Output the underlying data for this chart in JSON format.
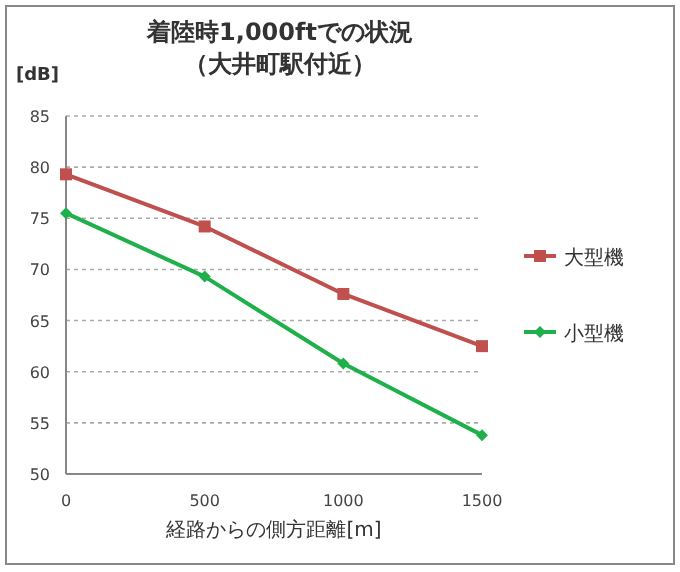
{
  "chart_data": {
    "type": "line",
    "title": "着陸時1,000ftでの状況",
    "subtitle": "（大井町駅付近）",
    "ylabel": "[dB]",
    "xlabel": "経路からの側方距離[m]",
    "x": [
      0,
      500,
      1000,
      1500
    ],
    "xlim": [
      0,
      1500
    ],
    "xticks": [
      0,
      500,
      1000,
      1500
    ],
    "ylim": [
      50,
      85
    ],
    "yticks": [
      50,
      55,
      60,
      65,
      70,
      75,
      80,
      85
    ],
    "grid": "y",
    "legend": "right",
    "series": [
      {
        "name": "大型機",
        "color": "#c0504d",
        "marker": "square",
        "values": [
          79.3,
          74.2,
          67.6,
          62.5
        ]
      },
      {
        "name": "小型機",
        "color": "#1fb04c",
        "marker": "diamond",
        "values": [
          75.5,
          69.3,
          60.8,
          53.8
        ]
      }
    ]
  }
}
